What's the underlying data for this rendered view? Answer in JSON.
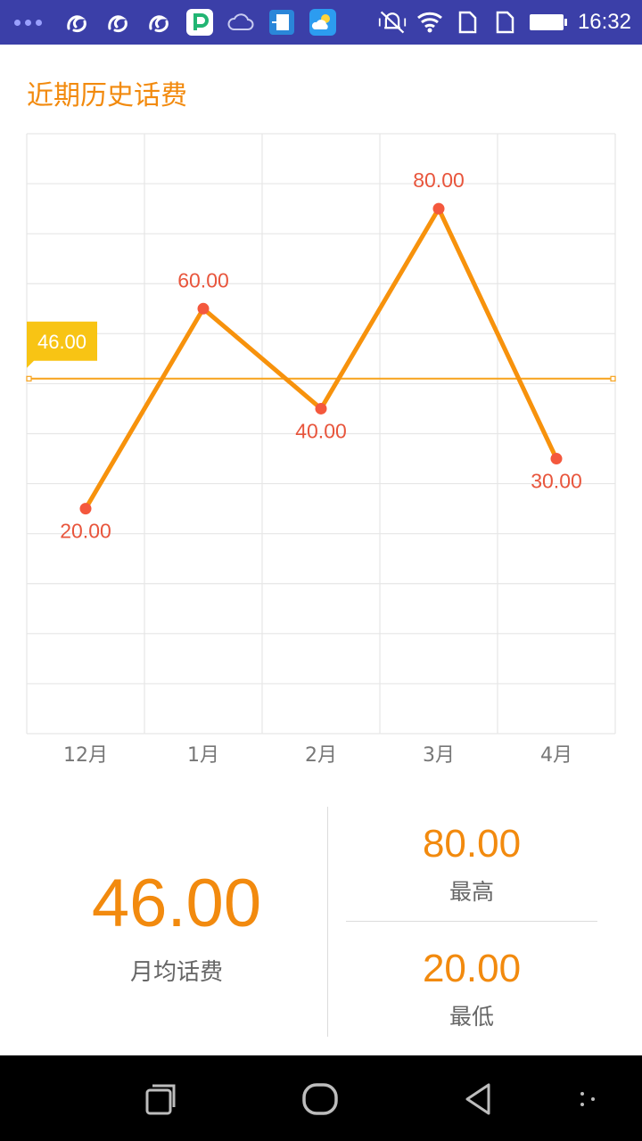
{
  "status_bar": {
    "time": "16:32",
    "left_icons": [
      "uc-browser-icon",
      "uc-browser-icon",
      "uc-browser-icon",
      "pp-assistant-icon",
      "cloud-icon",
      "file-transfer-icon",
      "weather-icon"
    ],
    "right_icons": [
      "mute-vibrate-icon",
      "wifi-icon",
      "sim1-icon",
      "sim2-icon",
      "battery-icon"
    ]
  },
  "page": {
    "title": "近期历史话费"
  },
  "chart_data": {
    "type": "line",
    "categories": [
      "12月",
      "1月",
      "2月",
      "3月",
      "4月"
    ],
    "values": [
      20.0,
      60.0,
      40.0,
      80.0,
      30.0
    ],
    "value_labels": [
      "20.00",
      "60.00",
      "40.00",
      "80.00",
      "30.00"
    ],
    "label_positions": [
      "below",
      "above",
      "below",
      "above",
      "below"
    ],
    "average": 46.0,
    "average_label": "46.00",
    "ylim": [
      -25,
      95
    ],
    "grid": true,
    "line_color": "#f7920c",
    "point_color": "#f4583d",
    "value_label_color": "#e8553c",
    "average_line_color": "#f7a21b",
    "average_badge_color": "#f8c414"
  },
  "summary": {
    "avg_value": "46.00",
    "avg_label": "月均话费",
    "max_value": "80.00",
    "max_label": "最高",
    "min_value": "20.00",
    "min_label": "最低"
  },
  "nav": {
    "icons": [
      "recent-apps-icon",
      "home-icon",
      "back-icon",
      "menu-icon"
    ]
  }
}
